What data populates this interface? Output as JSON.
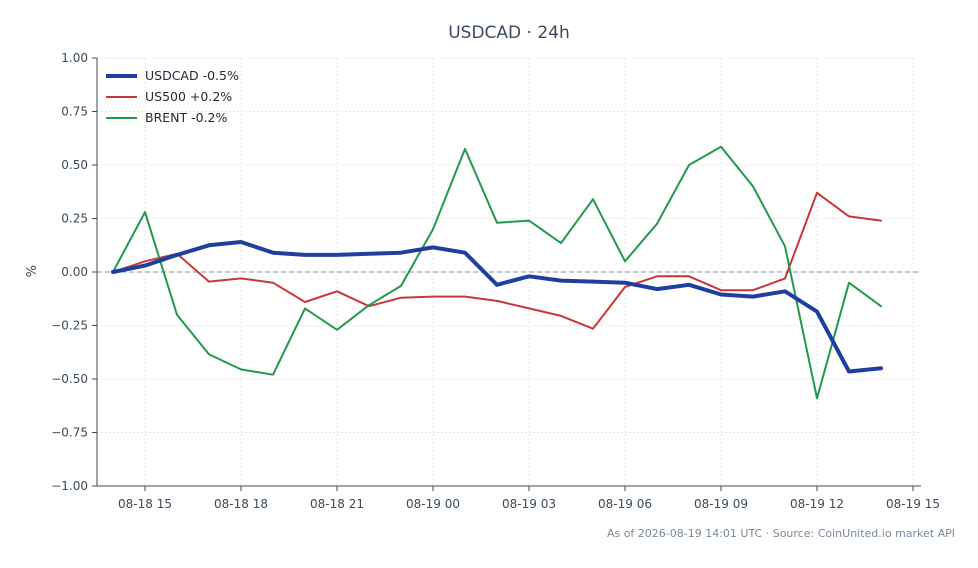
{
  "chart_data": {
    "type": "line",
    "title": "USDCAD · 24h",
    "ylabel": "%",
    "xlabel": "",
    "ylim": [
      -1.0,
      1.0
    ],
    "yticks": [
      "1.00",
      "0.75",
      "0.50",
      "0.25",
      "0.00",
      "−0.25",
      "−0.50",
      "−0.75",
      "−1.00"
    ],
    "ytick_values": [
      1.0,
      0.75,
      0.5,
      0.25,
      0.0,
      -0.25,
      -0.5,
      -0.75,
      -1.0
    ],
    "xlim": [
      "08-18 13:30",
      "08-19 15:15"
    ],
    "xticks": [
      "08-18 15",
      "08-18 18",
      "08-18 21",
      "08-19 00",
      "08-19 03",
      "08-19 06",
      "08-19 09",
      "08-19 12",
      "08-19 15"
    ],
    "xtick_values": [
      "08-18 15:00",
      "08-18 18:00",
      "08-18 21:00",
      "08-19 00:00",
      "08-19 03:00",
      "08-19 06:00",
      "08-19 09:00",
      "08-19 12:00",
      "08-19 15:00"
    ],
    "x": [
      "08-18 14:00",
      "08-18 15:00",
      "08-18 16:00",
      "08-18 17:00",
      "08-18 18:00",
      "08-18 19:00",
      "08-18 20:00",
      "08-18 21:00",
      "08-18 22:00",
      "08-18 23:00",
      "08-19 00:00",
      "08-19 01:00",
      "08-19 02:00",
      "08-19 03:00",
      "08-19 04:00",
      "08-19 05:00",
      "08-19 06:00",
      "08-19 07:00",
      "08-19 08:00",
      "08-19 09:00",
      "08-19 10:00",
      "08-19 11:00",
      "08-19 12:00",
      "08-19 13:00",
      "08-19 14:00"
    ],
    "zero_line": true,
    "grid": true,
    "legend_position": "top-left",
    "series": [
      {
        "name": "USDCAD -0.5%",
        "color": "#1f3fa0",
        "width": "thick",
        "values": [
          0.0,
          0.03,
          0.08,
          0.125,
          0.14,
          0.09,
          0.08,
          0.08,
          0.085,
          0.09,
          0.115,
          0.09,
          -0.06,
          -0.02,
          -0.04,
          -0.045,
          -0.05,
          -0.08,
          -0.06,
          -0.105,
          -0.115,
          -0.09,
          -0.185,
          -0.465,
          -0.45
        ]
      },
      {
        "name": "US500 +0.2%",
        "color": "#c8373a",
        "width": "normal",
        "values": [
          0.0,
          0.05,
          0.085,
          -0.045,
          -0.03,
          -0.05,
          -0.14,
          -0.09,
          -0.16,
          -0.12,
          -0.115,
          -0.115,
          -0.135,
          -0.17,
          -0.205,
          -0.265,
          -0.07,
          -0.02,
          -0.02,
          -0.085,
          -0.085,
          -0.03,
          0.37,
          0.26,
          0.24
        ]
      },
      {
        "name": "BRENT -0.2%",
        "color": "#22994c",
        "width": "normal",
        "values": [
          0.0,
          0.28,
          -0.2,
          -0.385,
          -0.455,
          -0.48,
          -0.17,
          -0.27,
          -0.155,
          -0.065,
          0.2,
          0.575,
          0.23,
          0.24,
          0.135,
          0.34,
          0.05,
          0.225,
          0.5,
          0.585,
          0.4,
          0.12,
          -0.59,
          -0.05,
          -0.16
        ]
      }
    ]
  },
  "footer": {
    "source_text": "As of 2026-08-19 14:01 UTC · Source: CoinUnited.io market API"
  }
}
